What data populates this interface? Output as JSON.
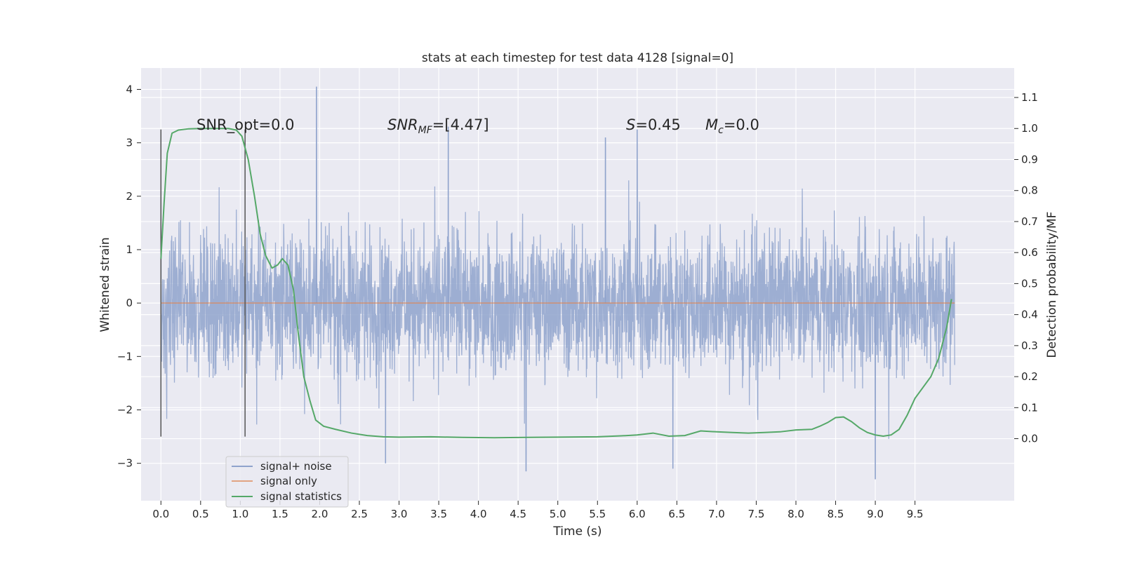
{
  "chart_data": {
    "type": "line",
    "title": "stats at each timestep for test data 4128 [signal=0]",
    "xlabel": "Time (s)",
    "ylabel_left": "Whitened strain",
    "ylabel_right": "Detection probability/MF",
    "xlim": [
      -0.25,
      10.75
    ],
    "ylim_left": [
      -3.7,
      4.4
    ],
    "ylim_right": [
      -0.2,
      1.195
    ],
    "x_ticks": [
      0.0,
      0.5,
      1.0,
      1.5,
      2.0,
      2.5,
      3.0,
      3.5,
      4.0,
      4.5,
      5.0,
      5.5,
      6.0,
      6.5,
      7.0,
      7.5,
      8.0,
      8.5,
      9.0,
      9.5
    ],
    "x_tick_labels": [
      "0.0",
      "0.5",
      "1.0",
      "1.5",
      "2.0",
      "2.5",
      "3.0",
      "3.5",
      "4.0",
      "4.5",
      "5.0",
      "5.5",
      "6.0",
      "6.5",
      "7.0",
      "7.5",
      "8.0",
      "8.5",
      "9.0",
      "9.5"
    ],
    "y_ticks_left": [
      -3,
      -2,
      -1,
      0,
      1,
      2,
      3,
      4
    ],
    "y_tick_labels_left": [
      "−3",
      "−2",
      "−1",
      "0",
      "1",
      "2",
      "3",
      "4"
    ],
    "y_ticks_right": [
      0.0,
      0.1,
      0.2,
      0.3,
      0.4,
      0.5,
      0.6,
      0.7,
      0.8,
      0.9,
      1.0,
      1.1
    ],
    "y_tick_labels_right": [
      "0.0",
      "0.1",
      "0.2",
      "0.3",
      "0.4",
      "0.5",
      "0.6",
      "0.7",
      "0.8",
      "0.9",
      "1.0",
      "1.1"
    ],
    "grid": true,
    "legend_position": "bottom-left",
    "annotations": {
      "snr_opt": "SNR_opt=0.0",
      "snr_mf_main": "SNR",
      "snr_mf_sub": "MF",
      "snr_mf_value": "=[4.47]",
      "s_symbol": "S",
      "s_value": "=0.45",
      "mc_symbol": "M",
      "mc_sub": "c",
      "mc_value": "=0.0"
    },
    "vertical_markers": [
      {
        "x": 0.0,
        "y_range": [
          -2.5,
          3.25
        ]
      },
      {
        "x": 1.06,
        "y_range": [
          -2.5,
          3.25
        ]
      }
    ],
    "series": [
      {
        "name": "signal+ noise",
        "color": "#8fa3cc",
        "render": "noise",
        "x_range": [
          0.0,
          10.0
        ],
        "envelope": {
          "typical_abs": 1.5,
          "min": -3.3,
          "max": 4.05
        },
        "peaks": [
          [
            0.0,
            3.2
          ],
          [
            1.96,
            4.05
          ],
          [
            3.62,
            3.3
          ],
          [
            5.6,
            3.1
          ],
          [
            6.0,
            3.25
          ],
          [
            9.0,
            -3.3
          ],
          [
            4.6,
            -3.15
          ],
          [
            6.45,
            -3.1
          ],
          [
            2.83,
            -3.0
          ]
        ]
      },
      {
        "name": "signal only",
        "color": "#dd8452",
        "x": [
          0.0,
          10.0
        ],
        "y": [
          0.0,
          0.0
        ]
      },
      {
        "name": "signal statistics",
        "color": "#55a868",
        "axis": "right",
        "x": [
          0.0,
          0.04,
          0.08,
          0.14,
          0.22,
          0.35,
          0.5,
          0.7,
          0.85,
          0.95,
          1.02,
          1.1,
          1.18,
          1.25,
          1.32,
          1.4,
          1.47,
          1.53,
          1.6,
          1.67,
          1.73,
          1.8,
          1.88,
          1.95,
          2.05,
          2.2,
          2.4,
          2.6,
          2.8,
          3.0,
          3.4,
          3.8,
          4.2,
          4.6,
          5.0,
          5.5,
          5.8,
          6.0,
          6.2,
          6.4,
          6.6,
          6.8,
          7.0,
          7.2,
          7.4,
          7.6,
          7.8,
          8.0,
          8.2,
          8.3,
          8.4,
          8.5,
          8.6,
          8.7,
          8.8,
          8.9,
          9.0,
          9.1,
          9.2,
          9.3,
          9.4,
          9.5,
          9.6,
          9.7,
          9.8,
          9.9,
          9.96
        ],
        "y": [
          0.58,
          0.76,
          0.92,
          0.985,
          0.995,
          0.999,
          1.0,
          1.0,
          1.0,
          0.995,
          0.975,
          0.9,
          0.78,
          0.66,
          0.59,
          0.55,
          0.56,
          0.58,
          0.56,
          0.48,
          0.34,
          0.2,
          0.12,
          0.06,
          0.04,
          0.03,
          0.018,
          0.01,
          0.006,
          0.005,
          0.006,
          0.004,
          0.003,
          0.004,
          0.005,
          0.006,
          0.009,
          0.012,
          0.018,
          0.008,
          0.01,
          0.025,
          0.022,
          0.02,
          0.018,
          0.02,
          0.022,
          0.028,
          0.03,
          0.04,
          0.052,
          0.068,
          0.07,
          0.055,
          0.035,
          0.02,
          0.012,
          0.008,
          0.012,
          0.03,
          0.075,
          0.13,
          0.165,
          0.2,
          0.26,
          0.36,
          0.45
        ]
      }
    ]
  }
}
